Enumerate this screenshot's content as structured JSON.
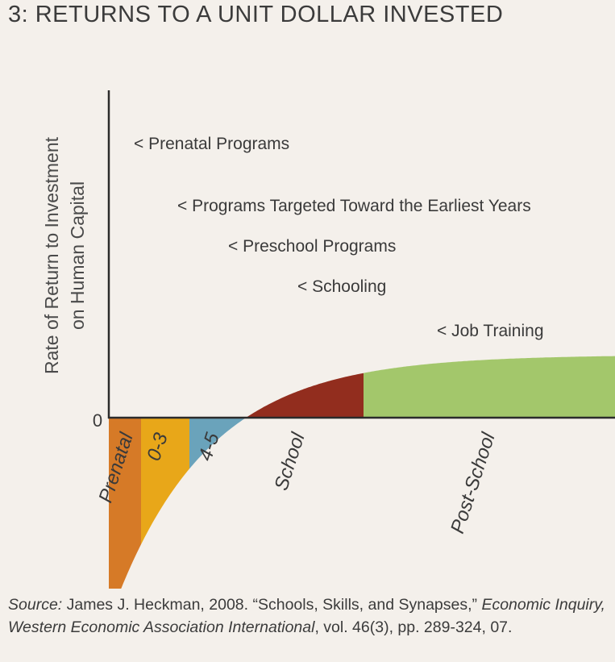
{
  "title": "3: RETURNS TO A UNIT DOLLAR INVESTED",
  "chart_data": {
    "type": "area",
    "title": "3: RETURNS TO A UNIT DOLLAR INVESTED",
    "ylabel_line1": "Rate of Return to Investment",
    "ylabel_line2": "on Human Capital",
    "y_zero_label": "0",
    "categories": [
      "Prenatal",
      "0-3",
      "4-5",
      "School",
      "Post-School"
    ],
    "colors": {
      "Prenatal": "#d67a27",
      "0-3": "#e8a719",
      "4-5": "#6aa3bb",
      "School": "#922d1e",
      "Post-School": "#a3c76b"
    },
    "annotations": [
      "< Prenatal Programs",
      "< Programs Targeted Toward the Earliest Years",
      "< Preschool Programs",
      "< Schooling",
      "< Job Training"
    ],
    "grid": false,
    "legend": "none"
  },
  "source": {
    "label": "Source:",
    "text1": " James J. Heckman, 2008. “Schools, Skills, and Synapses,” ",
    "journal": "Economic Inquiry, Western Economic Association International",
    "text2": ", vol. 46(3), pp. 289-324, 07."
  }
}
